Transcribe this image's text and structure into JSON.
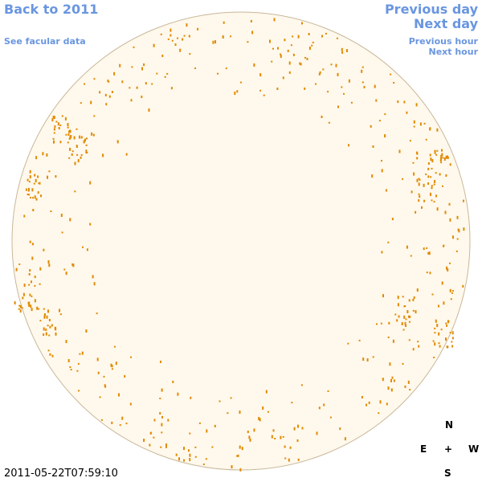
{
  "nav": {
    "back": "Back to 2011",
    "facular": "See facular data",
    "previous_day": "Previous day",
    "next_day": "Next day",
    "previous_hour": "Previous hour",
    "next_hour": "Next hour"
  },
  "compass": {
    "north": "N",
    "east": "E",
    "center": "+",
    "west": "W",
    "south": "S"
  },
  "timestamp": "2011-05-22T07:59:10"
}
